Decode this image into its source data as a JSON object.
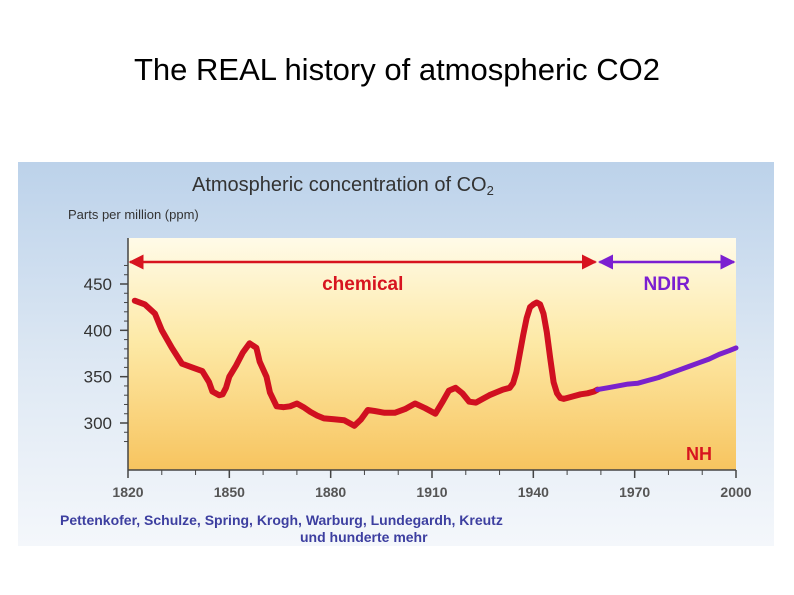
{
  "slide": {
    "title": "The REAL history of atmospheric CO2"
  },
  "chart_data": {
    "type": "line",
    "title": "Atmospheric concentration of CO",
    "title_subscript": "2",
    "ylabel": "Parts per million (ppm)",
    "xlim": [
      1820,
      2000
    ],
    "ylim": [
      270,
      480
    ],
    "xticks": [
      "1820",
      "1850",
      "1880",
      "1910",
      "1940",
      "1970",
      "2000"
    ],
    "yticks": [
      "450",
      "400",
      "350",
      "300"
    ],
    "grid": false,
    "region_label": "NH",
    "methods": [
      {
        "name": "chemical",
        "from": 1820,
        "to": 1959,
        "color": "#d7141f"
      },
      {
        "name": "NDIR",
        "from": 1959,
        "to": 2000,
        "color": "#7b1fd1"
      }
    ],
    "series": [
      {
        "method": "chemical",
        "color": "#d01020",
        "x": [
          1822,
          1825,
          1828,
          1830,
          1833,
          1836,
          1839,
          1842,
          1844,
          1845,
          1847,
          1848,
          1849,
          1850,
          1852,
          1854,
          1856,
          1858,
          1859,
          1861,
          1862,
          1864,
          1866,
          1868,
          1870,
          1872,
          1874,
          1876,
          1878,
          1881,
          1884,
          1887,
          1889,
          1891,
          1893,
          1896,
          1899,
          1902,
          1905,
          1908,
          1911,
          1913,
          1915,
          1917,
          1919,
          1921,
          1923,
          1925,
          1927,
          1929,
          1931,
          1933,
          1934,
          1935,
          1936,
          1937,
          1938,
          1939,
          1940,
          1941,
          1942,
          1943,
          1944,
          1945,
          1946,
          1947,
          1948,
          1949,
          1950,
          1952,
          1954,
          1956,
          1958,
          1959
        ],
        "y": [
          432,
          428,
          418,
          400,
          381,
          364,
          360,
          356,
          344,
          334,
          330,
          331,
          338,
          350,
          362,
          376,
          386,
          381,
          366,
          350,
          333,
          318,
          317,
          318,
          321,
          317,
          312,
          308,
          305,
          304,
          303,
          297,
          304,
          314,
          313,
          311,
          311,
          315,
          321,
          316,
          310,
          322,
          335,
          338,
          332,
          323,
          322,
          326,
          330,
          333,
          336,
          338,
          343,
          355,
          375,
          395,
          413,
          425,
          428,
          430,
          428,
          418,
          398,
          370,
          344,
          332,
          327,
          326,
          327,
          329,
          331,
          332,
          334,
          336
        ]
      },
      {
        "method": "NDIR",
        "color": "#7a22cc",
        "x": [
          1959,
          1962,
          1965,
          1968,
          1971,
          1974,
          1977,
          1980,
          1983,
          1986,
          1989,
          1992,
          1995,
          1998,
          2000
        ],
        "y": [
          336,
          338,
          340,
          342,
          343,
          346,
          349,
          353,
          357,
          361,
          365,
          369,
          374,
          378,
          381
        ]
      }
    ],
    "footer_line1": "Pettenkofer, Schulze, Spring, Krogh, Warburg, Lundegardh, Kreutz",
    "footer_line2": "und hunderte mehr"
  }
}
